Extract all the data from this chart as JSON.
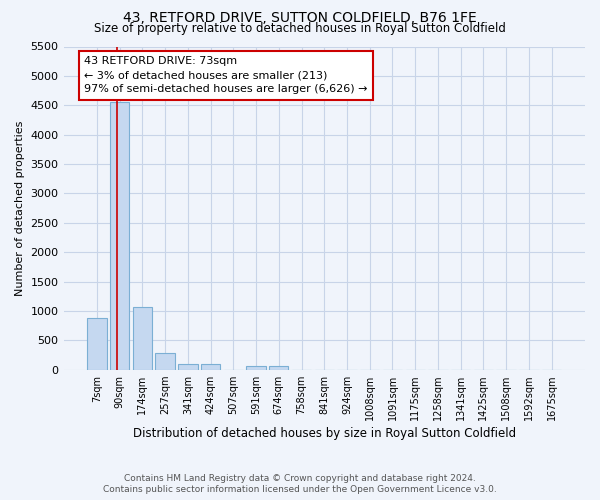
{
  "title": "43, RETFORD DRIVE, SUTTON COLDFIELD, B76 1FE",
  "subtitle": "Size of property relative to detached houses in Royal Sutton Coldfield",
  "xlabel": "Distribution of detached houses by size in Royal Sutton Coldfield",
  "ylabel": "Number of detached properties",
  "footer_line1": "Contains HM Land Registry data © Crown copyright and database right 2024.",
  "footer_line2": "Contains public sector information licensed under the Open Government Licence v3.0.",
  "bar_labels": [
    "7sqm",
    "90sqm",
    "174sqm",
    "257sqm",
    "341sqm",
    "424sqm",
    "507sqm",
    "591sqm",
    "674sqm",
    "758sqm",
    "841sqm",
    "924sqm",
    "1008sqm",
    "1091sqm",
    "1175sqm",
    "1258sqm",
    "1341sqm",
    "1425sqm",
    "1508sqm",
    "1592sqm",
    "1675sqm"
  ],
  "bar_values": [
    880,
    4560,
    1060,
    290,
    95,
    95,
    0,
    55,
    55,
    0,
    0,
    0,
    0,
    0,
    0,
    0,
    0,
    0,
    0,
    0,
    0
  ],
  "bar_color": "#c5d8f0",
  "bar_edge_color": "#7bafd4",
  "ylim": [
    0,
    5500
  ],
  "yticks": [
    0,
    500,
    1000,
    1500,
    2000,
    2500,
    3000,
    3500,
    4000,
    4500,
    5000,
    5500
  ],
  "vline_x": 0.9,
  "vline_color": "#cc0000",
  "annotation_text": "43 RETFORD DRIVE: 73sqm\n← 3% of detached houses are smaller (213)\n97% of semi-detached houses are larger (6,626) →",
  "bg_color": "#f0f4fb",
  "plot_bg_color": "#f0f4fb",
  "grid_color": "#c8d4e8"
}
